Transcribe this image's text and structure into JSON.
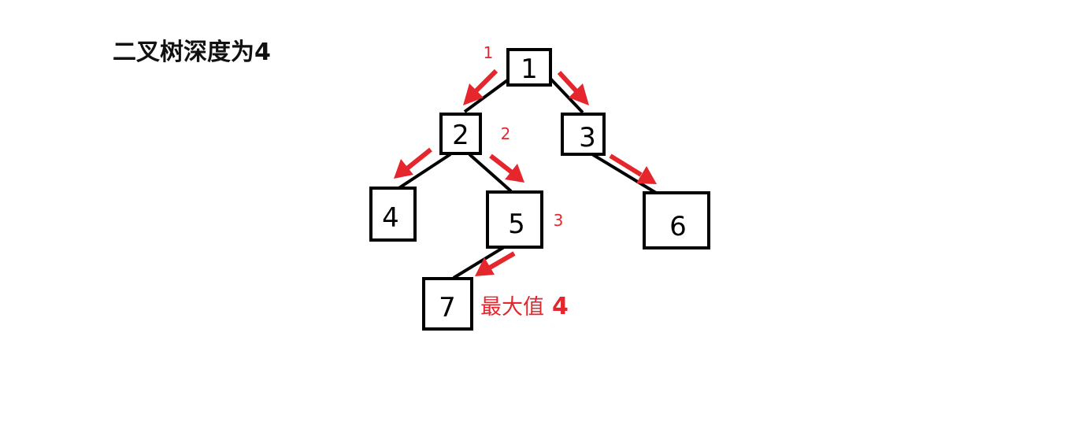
{
  "title": "二叉树深度为4",
  "nodes": [
    "1",
    "2",
    "3",
    "4",
    "5",
    "6",
    "7"
  ],
  "depth_labels": [
    "1",
    "2",
    "3"
  ],
  "max_label": {
    "text": "最大值",
    "value": "4"
  },
  "colors": {
    "arrow": "#e5262d",
    "node_border": "#000000",
    "title": "#111111"
  }
}
